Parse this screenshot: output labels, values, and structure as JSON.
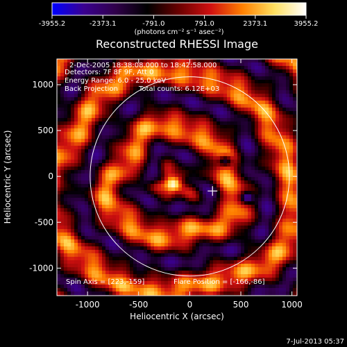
{
  "colorbar": {
    "ticks": [
      "-3955.2",
      "-2373.1",
      "-791.0",
      "791.0",
      "2373.1",
      "3955.2"
    ],
    "unit_label": "(photons cm⁻² s⁻¹ asec⁻²)",
    "stops": [
      "#0000ff",
      "#3a0090",
      "#30004a",
      "#000000",
      "#6a0000",
      "#d01010",
      "#ff8000",
      "#ffe060",
      "#ffffff"
    ]
  },
  "chart_data": {
    "type": "heatmap",
    "title": "Reconstructed RHESSI Image",
    "xlabel": "Heliocentric X (arcsec)",
    "ylabel": "Heliocentric Y (arcsec)",
    "xlim": [
      -1300,
      1050
    ],
    "ylim": [
      -1300,
      1280
    ],
    "xticks": [
      -1000,
      -500,
      0,
      500,
      1000
    ],
    "yticks": [
      -1000,
      -500,
      0,
      500,
      1000
    ],
    "xtick_labels": [
      "-1000",
      "-500",
      "0",
      "500",
      "1000"
    ],
    "ytick_labels": [
      "-1000",
      "-500",
      "0",
      "500",
      "1000"
    ],
    "value_range": [
      -3955.2,
      3955.2
    ],
    "solar_limb_radius": 975,
    "crosshair": [
      223,
      -159
    ],
    "flare_position": [
      -166,
      -86
    ],
    "annotations": {
      "time": "2-Dec-2005 18:38:08.000 to 18:42:58.000",
      "detectors": "Detectors: 7F 8F 9F, Att 0",
      "energy": "Energy Range: 6.0 - 25.0 keV",
      "method": "Back Projection",
      "counts": "Total counts: 6.12E+03",
      "spin_axis": "Spin Axis = [223,-159]",
      "flare_pos_text": "Flare Position = [-166,-86]"
    },
    "features": [
      {
        "kind": "bright source",
        "x": -166,
        "y": -86,
        "value": 3955.2
      },
      {
        "kind": "negative spot",
        "x": 350,
        "y": 170,
        "value": -2373.1
      },
      {
        "kind": "negative spot",
        "x": 560,
        "y": -230,
        "value": -2373.1
      }
    ]
  },
  "footer": {
    "date": "7-Jul-2013 05:37"
  }
}
